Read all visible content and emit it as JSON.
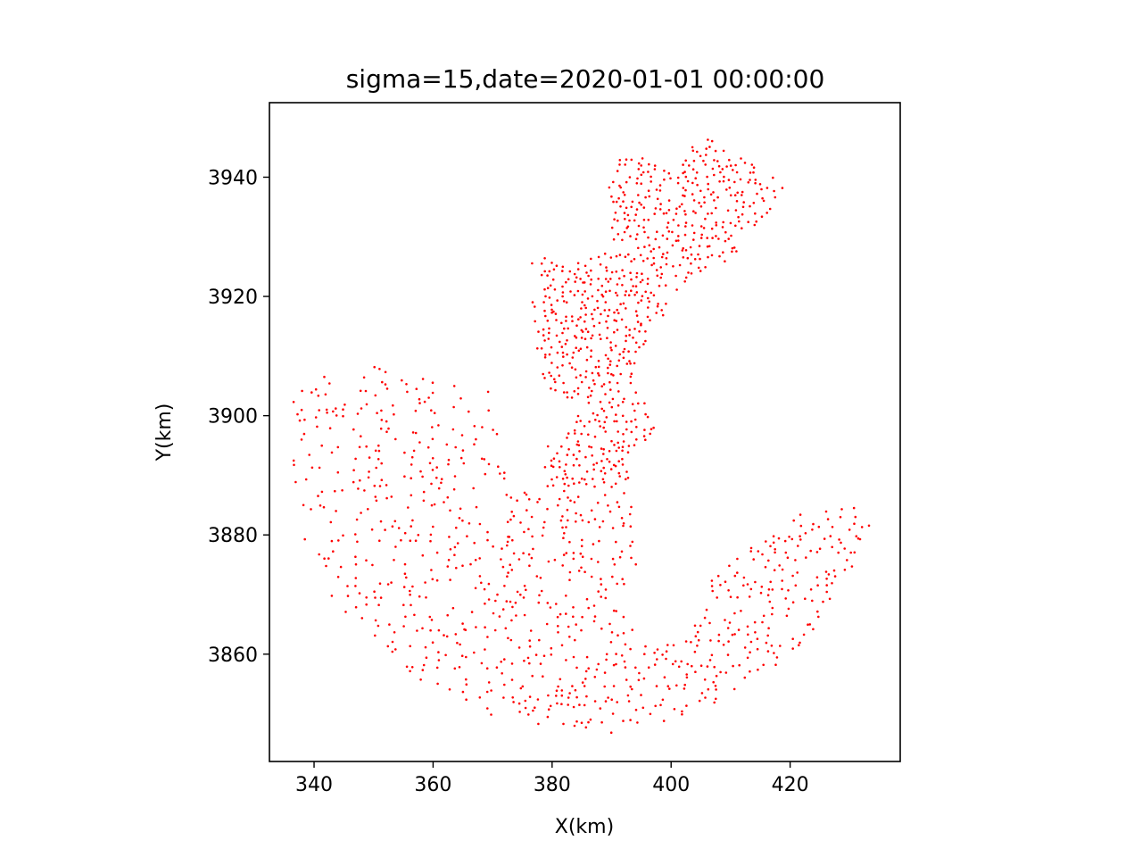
{
  "chart_data": {
    "type": "scatter",
    "title": "sigma=15,date=2020-01-01 00:00:00",
    "xlabel": "X(km)",
    "ylabel": "Y(km)",
    "xlim": [
      332.5,
      438.5
    ],
    "ylim": [
      3842,
      3952.5
    ],
    "xticks": [
      340,
      360,
      380,
      400,
      420
    ],
    "yticks": [
      3860,
      3880,
      3900,
      3920,
      3940
    ],
    "grid": false,
    "legend": "none",
    "marker_color": "#ff0000",
    "series": [
      {
        "name": "",
        "approximate_point_count": 1700,
        "regions": [
          {
            "region": "northeast lobe",
            "xrange": [
              390,
              420
            ],
            "yrange": [
              3926,
              3947
            ],
            "spacing": 1.3
          },
          {
            "region": "central channel",
            "xrange": [
              379,
              397
            ],
            "yrange": [
              3893,
              3927
            ],
            "spacing": 1.2
          },
          {
            "region": "western sea",
            "xrange": [
              337,
              372
            ],
            "yrange": [
              3858,
              3909
            ],
            "spacing": 2.2
          },
          {
            "region": "southern basin",
            "xrange": [
              360,
              405
            ],
            "yrange": [
              3847,
              3890
            ],
            "spacing": 1.9
          },
          {
            "region": "southeast arm",
            "xrange": [
              398,
              434
            ],
            "yrange": [
              3850,
              3887
            ],
            "spacing": 1.7
          }
        ]
      }
    ]
  }
}
